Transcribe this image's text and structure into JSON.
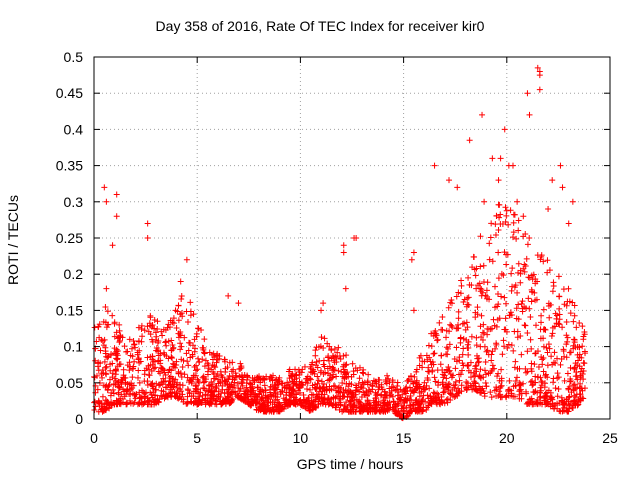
{
  "chart_data": {
    "type": "scatter",
    "title": "Day 358 of 2016, Rate Of TEC Index for receiver kir0",
    "xlabel": "GPS time / hours",
    "ylabel": "ROTI / TECUs",
    "xlim": [
      0,
      25
    ],
    "ylim": [
      0,
      0.5
    ],
    "x_ticks": [
      "0",
      "5",
      "10",
      "15",
      "20",
      "25"
    ],
    "y_ticks": [
      "0",
      "0.05",
      "0.1",
      "0.15",
      "0.2",
      "0.25",
      "0.3",
      "0.35",
      "0.4",
      "0.45",
      "0.5"
    ],
    "grid": true,
    "marker": "+",
    "color": "#ff0000",
    "envelope": {
      "x": [
        0,
        0.5,
        1,
        1.5,
        2,
        2.5,
        3,
        3.5,
        4,
        4.5,
        5,
        5.5,
        6,
        6.5,
        7,
        7.5,
        8,
        8.5,
        9,
        9.5,
        10,
        10.5,
        11,
        11.5,
        12,
        12.5,
        13,
        13.5,
        14,
        14.5,
        15,
        15.5,
        16,
        16.5,
        17,
        17.5,
        18,
        18.5,
        19,
        19.5,
        20,
        20.5,
        21,
        21.5,
        22,
        22.5,
        23,
        23.5,
        23.8
      ],
      "typical_max": [
        0.13,
        0.16,
        0.15,
        0.12,
        0.11,
        0.16,
        0.14,
        0.13,
        0.16,
        0.18,
        0.14,
        0.1,
        0.09,
        0.08,
        0.08,
        0.06,
        0.06,
        0.06,
        0.06,
        0.07,
        0.07,
        0.08,
        0.12,
        0.1,
        0.1,
        0.08,
        0.07,
        0.06,
        0.06,
        0.06,
        0.05,
        0.07,
        0.1,
        0.13,
        0.16,
        0.18,
        0.2,
        0.24,
        0.27,
        0.3,
        0.3,
        0.28,
        0.26,
        0.24,
        0.22,
        0.2,
        0.18,
        0.14,
        0.12
      ],
      "typical_min": [
        0.01,
        0.01,
        0.02,
        0.02,
        0.02,
        0.02,
        0.02,
        0.03,
        0.03,
        0.02,
        0.02,
        0.02,
        0.02,
        0.02,
        0.03,
        0.02,
        0.01,
        0.01,
        0.01,
        0.02,
        0.02,
        0.01,
        0.02,
        0.02,
        0.01,
        0.01,
        0.01,
        0.01,
        0.01,
        0.01,
        0.0,
        0.01,
        0.01,
        0.02,
        0.02,
        0.03,
        0.04,
        0.04,
        0.03,
        0.03,
        0.03,
        0.03,
        0.02,
        0.02,
        0.02,
        0.01,
        0.01,
        0.02,
        0.03
      ],
      "outliers": [
        [
          0.5,
          0.32
        ],
        [
          0.6,
          0.3
        ],
        [
          1.1,
          0.31
        ],
        [
          1.1,
          0.28
        ],
        [
          0.6,
          0.18
        ],
        [
          0.9,
          0.24
        ],
        [
          2.6,
          0.27
        ],
        [
          2.6,
          0.25
        ],
        [
          4.5,
          0.22
        ],
        [
          4.2,
          0.19
        ],
        [
          6.5,
          0.17
        ],
        [
          7.0,
          0.16
        ],
        [
          11.1,
          0.16
        ],
        [
          11.0,
          0.15
        ],
        [
          12.1,
          0.24
        ],
        [
          12.1,
          0.23
        ],
        [
          12.7,
          0.25
        ],
        [
          12.6,
          0.25
        ],
        [
          12.2,
          0.18
        ],
        [
          15.5,
          0.23
        ],
        [
          15.4,
          0.22
        ],
        [
          15.5,
          0.15
        ],
        [
          16.5,
          0.35
        ],
        [
          17.2,
          0.33
        ],
        [
          17.6,
          0.32
        ],
        [
          18.2,
          0.385
        ],
        [
          18.8,
          0.42
        ],
        [
          19.7,
          0.36
        ],
        [
          19.9,
          0.4
        ],
        [
          20.3,
          0.35
        ],
        [
          20.5,
          0.3
        ],
        [
          21.0,
          0.45
        ],
        [
          21.1,
          0.42
        ],
        [
          21.6,
          0.48
        ],
        [
          21.5,
          0.485
        ],
        [
          21.6,
          0.475
        ],
        [
          21.6,
          0.455
        ],
        [
          22.0,
          0.29
        ],
        [
          22.2,
          0.33
        ],
        [
          22.6,
          0.35
        ],
        [
          22.7,
          0.32
        ],
        [
          23.2,
          0.3
        ],
        [
          23.0,
          0.27
        ],
        [
          19.3,
          0.36
        ],
        [
          19.6,
          0.33
        ],
        [
          18.9,
          0.3
        ],
        [
          20.1,
          0.35
        ],
        [
          20.8,
          0.28
        ]
      ]
    }
  }
}
